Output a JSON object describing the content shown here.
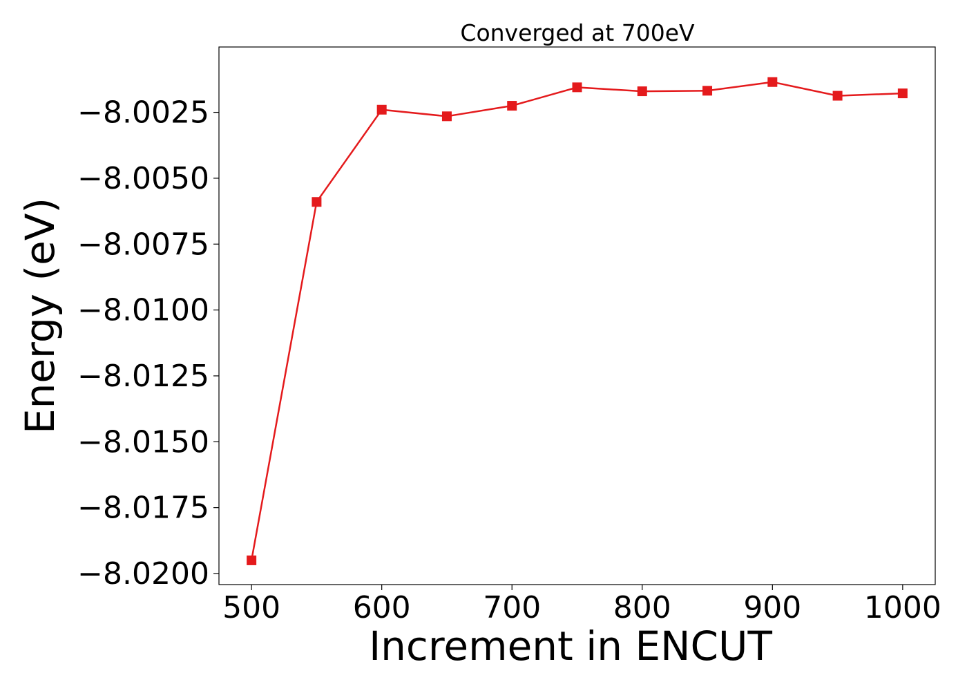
{
  "chart_data": {
    "type": "line",
    "title": "Converged at 700eV",
    "xlabel": "Increment in ENCUT",
    "ylabel": "Energy (eV)",
    "xlim": [
      475,
      1025
    ],
    "ylim": [
      -8.02042,
      -8.00002
    ],
    "xticks": [
      500,
      600,
      700,
      800,
      900,
      1000
    ],
    "xtick_labels": [
      "500",
      "600",
      "700",
      "800",
      "900",
      "1000"
    ],
    "yticks": [
      -8.0025,
      -8.005,
      -8.0075,
      -8.01,
      -8.0125,
      -8.015,
      -8.0175,
      -8.02
    ],
    "ytick_labels": [
      "−8.0025",
      "−8.0050",
      "−8.0075",
      "−8.0100",
      "−8.0125",
      "−8.0150",
      "−8.0175",
      "−8.0200"
    ],
    "grid": false,
    "legend": "none",
    "series": [
      {
        "color": "#e41a1c",
        "marker": "square",
        "x": [
          500,
          550,
          600,
          650,
          700,
          750,
          800,
          850,
          900,
          950,
          1000
        ],
        "y": [
          -8.0195,
          -8.0059,
          -8.0024,
          -8.00265,
          -8.00225,
          -8.00155,
          -8.0017,
          -8.00168,
          -8.00135,
          -8.00187,
          -8.00178
        ]
      }
    ]
  }
}
